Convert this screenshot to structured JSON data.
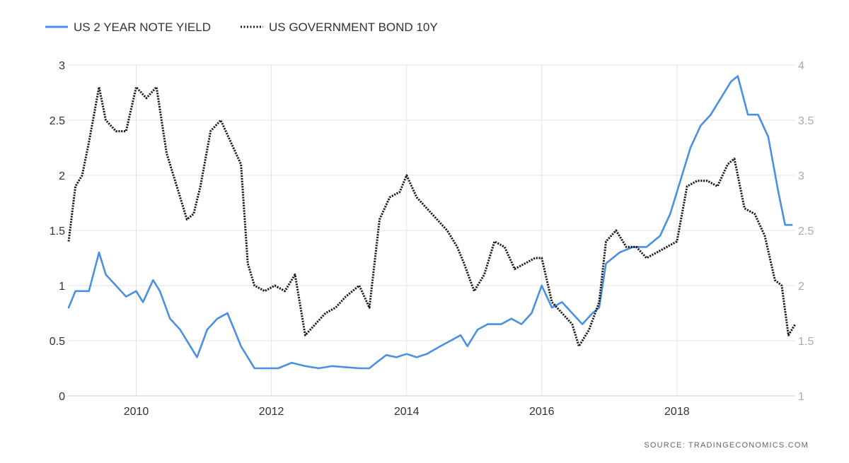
{
  "chart_data": {
    "type": "line",
    "legend": {
      "position": "top-left"
    },
    "grid": true,
    "source": "SOURCE:  TRADINGECONOMICS.COM",
    "x_range": [
      2009.0,
      2019.75
    ],
    "x_ticks": [
      "2010",
      "2012",
      "2014",
      "2016",
      "2018"
    ],
    "y_left": {
      "range": [
        0,
        3
      ],
      "ticks": [
        "0",
        "0.5",
        "1",
        "1.5",
        "2",
        "2.5",
        "3"
      ]
    },
    "y_right": {
      "range": [
        1,
        4
      ],
      "ticks": [
        "1",
        "1.5",
        "2",
        "2.5",
        "3",
        "3.5",
        "4"
      ]
    },
    "series": [
      {
        "name": "US 2 YEAR NOTE YIELD",
        "axis": "left",
        "color": "#4a90e2",
        "style": "solid",
        "x": [
          2009.0,
          2009.1,
          2009.2,
          2009.3,
          2009.45,
          2009.55,
          2009.7,
          2009.85,
          2010.0,
          2010.1,
          2010.25,
          2010.35,
          2010.5,
          2010.65,
          2010.8,
          2010.9,
          2011.05,
          2011.2,
          2011.35,
          2011.45,
          2011.55,
          2011.65,
          2011.75,
          2011.9,
          2012.1,
          2012.3,
          2012.5,
          2012.7,
          2012.9,
          2013.1,
          2013.3,
          2013.45,
          2013.55,
          2013.7,
          2013.85,
          2014.0,
          2014.15,
          2014.3,
          2014.5,
          2014.65,
          2014.8,
          2014.9,
          2015.05,
          2015.2,
          2015.4,
          2015.55,
          2015.7,
          2015.85,
          2016.0,
          2016.15,
          2016.3,
          2016.45,
          2016.6,
          2016.75,
          2016.85,
          2016.95,
          2017.15,
          2017.35,
          2017.55,
          2017.75,
          2017.9,
          2018.05,
          2018.2,
          2018.35,
          2018.5,
          2018.65,
          2018.8,
          2018.9,
          2019.05,
          2019.2,
          2019.35,
          2019.5,
          2019.6,
          2019.7
        ],
        "values": [
          0.8,
          0.95,
          0.95,
          0.95,
          1.3,
          1.1,
          1.0,
          0.9,
          0.95,
          0.85,
          1.05,
          0.95,
          0.7,
          0.6,
          0.45,
          0.35,
          0.6,
          0.7,
          0.75,
          0.6,
          0.45,
          0.35,
          0.25,
          0.25,
          0.25,
          0.3,
          0.27,
          0.25,
          0.27,
          0.26,
          0.25,
          0.25,
          0.3,
          0.37,
          0.35,
          0.38,
          0.35,
          0.38,
          0.45,
          0.5,
          0.55,
          0.45,
          0.6,
          0.65,
          0.65,
          0.7,
          0.65,
          0.75,
          1.0,
          0.8,
          0.85,
          0.75,
          0.65,
          0.75,
          0.8,
          1.2,
          1.3,
          1.35,
          1.35,
          1.45,
          1.65,
          1.95,
          2.25,
          2.45,
          2.55,
          2.7,
          2.85,
          2.9,
          2.55,
          2.55,
          2.35,
          1.85,
          1.55,
          1.55
        ]
      },
      {
        "name": "US GOVERNMENT BOND 10Y",
        "axis": "right",
        "color": "#1a1a1a",
        "style": "dotted",
        "x": [
          2009.0,
          2009.1,
          2009.2,
          2009.3,
          2009.45,
          2009.55,
          2009.7,
          2009.85,
          2010.0,
          2010.15,
          2010.3,
          2010.45,
          2010.6,
          2010.75,
          2010.85,
          2010.95,
          2011.1,
          2011.25,
          2011.4,
          2011.55,
          2011.65,
          2011.75,
          2011.9,
          2012.05,
          2012.2,
          2012.35,
          2012.5,
          2012.65,
          2012.8,
          2012.95,
          2013.1,
          2013.3,
          2013.45,
          2013.6,
          2013.75,
          2013.9,
          2014.0,
          2014.15,
          2014.3,
          2014.45,
          2014.6,
          2014.75,
          2014.85,
          2015.0,
          2015.15,
          2015.3,
          2015.45,
          2015.6,
          2015.75,
          2015.9,
          2016.0,
          2016.15,
          2016.3,
          2016.45,
          2016.55,
          2016.7,
          2016.85,
          2016.95,
          2017.1,
          2017.25,
          2017.4,
          2017.55,
          2017.7,
          2017.85,
          2018.0,
          2018.15,
          2018.3,
          2018.45,
          2018.6,
          2018.75,
          2018.85,
          2019.0,
          2019.15,
          2019.3,
          2019.45,
          2019.55,
          2019.65,
          2019.75
        ],
        "values": [
          2.4,
          2.9,
          3.0,
          3.3,
          3.8,
          3.5,
          3.4,
          3.4,
          3.8,
          3.7,
          3.8,
          3.2,
          2.9,
          2.6,
          2.65,
          2.9,
          3.4,
          3.5,
          3.3,
          3.1,
          2.2,
          2.0,
          1.95,
          2.0,
          1.95,
          2.1,
          1.55,
          1.65,
          1.75,
          1.8,
          1.9,
          2.0,
          1.8,
          2.6,
          2.8,
          2.85,
          3.0,
          2.8,
          2.7,
          2.6,
          2.5,
          2.35,
          2.2,
          1.95,
          2.1,
          2.4,
          2.35,
          2.15,
          2.2,
          2.25,
          2.25,
          1.85,
          1.75,
          1.65,
          1.45,
          1.6,
          1.85,
          2.4,
          2.5,
          2.35,
          2.35,
          2.25,
          2.3,
          2.35,
          2.4,
          2.9,
          2.95,
          2.95,
          2.9,
          3.1,
          3.15,
          2.7,
          2.65,
          2.45,
          2.05,
          2.0,
          1.55,
          1.65
        ]
      }
    ]
  }
}
